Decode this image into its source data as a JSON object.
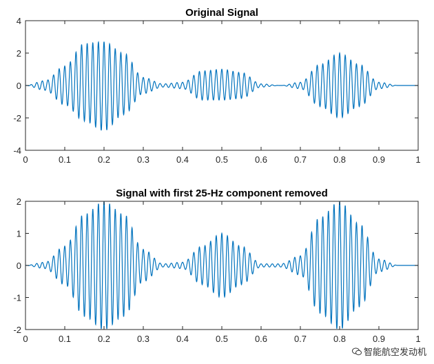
{
  "chart_data": [
    {
      "type": "line",
      "title": "Original Signal",
      "xlabel": "",
      "ylabel": "",
      "xlim": [
        0,
        1
      ],
      "ylim": [
        -4,
        4
      ],
      "xticks": [
        "0",
        "0.1",
        "0.2",
        "0.3",
        "0.4",
        "0.5",
        "0.6",
        "0.7",
        "0.8",
        "0.9",
        "1"
      ],
      "yticks": [
        "-4",
        "-2",
        "0",
        "2",
        "4"
      ],
      "grid": false,
      "color": "#0072BD",
      "series": [
        {
          "x": [
            0,
            0.05,
            0.1,
            0.15,
            0.2,
            0.25,
            0.3,
            0.35,
            0.4,
            0.45,
            0.5,
            0.55,
            0.6,
            0.65,
            0.7,
            0.75,
            0.8,
            0.85,
            0.9,
            0.95,
            1
          ],
          "envelope_max": [
            0.0,
            0.3,
            1.2,
            2.6,
            2.7,
            2.0,
            0.5,
            0.1,
            0.2,
            0.9,
            1.0,
            0.8,
            0.1,
            0.0,
            0.2,
            1.3,
            2.0,
            1.3,
            0.2,
            0.0,
            0.0
          ],
          "envelope_min": [
            0.0,
            -0.3,
            -1.2,
            -2.2,
            -2.8,
            -1.8,
            -0.5,
            -0.1,
            -0.2,
            -0.9,
            -0.9,
            -0.8,
            -0.1,
            0.0,
            -0.2,
            -1.3,
            -2.0,
            -1.3,
            -0.2,
            0.0,
            0.0
          ]
        }
      ]
    },
    {
      "type": "line",
      "title": "Signal with first 25-Hz component removed",
      "xlabel": "",
      "ylabel": "",
      "xlim": [
        0,
        1
      ],
      "ylim": [
        -2,
        2
      ],
      "xticks": [
        "0",
        "0.1",
        "0.2",
        "0.3",
        "0.4",
        "0.5",
        "0.6",
        "0.7",
        "0.8",
        "0.9",
        "1"
      ],
      "yticks": [
        "-2",
        "-1",
        "0",
        "1",
        "2"
      ],
      "grid": false,
      "color": "#0072BD",
      "series": [
        {
          "x": [
            0,
            0.05,
            0.1,
            0.15,
            0.2,
            0.25,
            0.3,
            0.35,
            0.4,
            0.45,
            0.5,
            0.55,
            0.6,
            0.65,
            0.7,
            0.75,
            0.8,
            0.85,
            0.9,
            0.95,
            1
          ],
          "envelope_max": [
            0.0,
            0.1,
            0.6,
            1.6,
            2.0,
            1.6,
            0.5,
            0.05,
            0.1,
            0.6,
            1.0,
            0.6,
            0.05,
            0.05,
            0.3,
            1.5,
            2.0,
            1.3,
            0.2,
            0.0,
            0.0
          ],
          "envelope_min": [
            0.0,
            -0.1,
            -0.6,
            -1.6,
            -2.0,
            -1.6,
            -0.5,
            -0.05,
            -0.1,
            -0.6,
            -1.0,
            -0.6,
            -0.05,
            -0.05,
            -0.3,
            -1.5,
            -2.0,
            -1.3,
            -0.2,
            0.0,
            0.0
          ]
        }
      ]
    }
  ],
  "watermark": "智能航空发动机"
}
